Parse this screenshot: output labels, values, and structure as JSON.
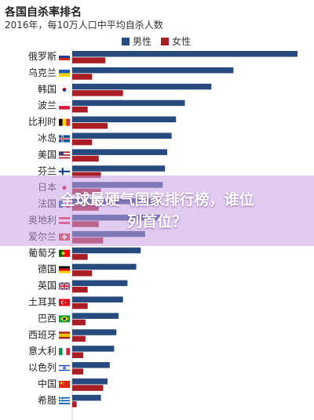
{
  "header": {
    "title": "各国自杀率排名",
    "subtitle": "2016年，每10万人口中平均自杀人数"
  },
  "overlay": {
    "line1": "全球最硬气国家排行榜，谁位",
    "line2": "列首位？"
  },
  "colors": {
    "male": "#264a7e",
    "female": "#a81e24",
    "label": "#222222"
  },
  "chart_data": {
    "type": "bar",
    "orientation": "horizontal",
    "title": "各国自杀率排名",
    "subtitle": "2016年，每10万人口中平均自杀人数",
    "legend_position": "top",
    "xlim": [
      0,
      55
    ],
    "categories": [
      "俄罗斯",
      "乌克兰",
      "韩国",
      "波兰",
      "比利时",
      "冰岛",
      "美国",
      "芬兰",
      "日本",
      "法国",
      "奥地利",
      "爱尔兰",
      "葡萄牙",
      "德国",
      "英国",
      "土耳其",
      "巴西",
      "西班牙",
      "意大利",
      "以色列",
      "中国",
      "希腊"
    ],
    "series": [
      {
        "name": "男性",
        "values": [
          51.0,
          36.5,
          31.5,
          25.5,
          23.5,
          22.5,
          21.5,
          21.0,
          20.5,
          20.0,
          20.0,
          16.5,
          15.5,
          14.5,
          12.5,
          11.5,
          10.5,
          10.0,
          9.5,
          8.5,
          8.0,
          6.5
        ]
      },
      {
        "name": "女性",
        "values": [
          7.5,
          4.5,
          11.5,
          3.5,
          8.0,
          4.5,
          6.0,
          6.5,
          6.5,
          6.0,
          6.0,
          7.0,
          3.5,
          4.5,
          3.5,
          3.5,
          3.0,
          3.0,
          2.5,
          2.5,
          7.0,
          1.0
        ]
      }
    ],
    "flags": [
      "russia-flag-icon",
      "ukraine-flag-icon",
      "korea-flag-icon",
      "poland-flag-icon",
      "belgium-flag-icon",
      "iceland-flag-icon",
      "usa-flag-icon",
      "finland-flag-icon",
      "japan-flag-icon",
      "france-flag-icon",
      "austria-flag-icon",
      "ireland-flag-icon",
      "portugal-flag-icon",
      "germany-flag-icon",
      "uk-flag-icon",
      "turkey-flag-icon",
      "brazil-flag-icon",
      "spain-flag-icon",
      "italy-flag-icon",
      "israel-flag-icon",
      "china-flag-icon",
      "greece-flag-icon"
    ]
  }
}
